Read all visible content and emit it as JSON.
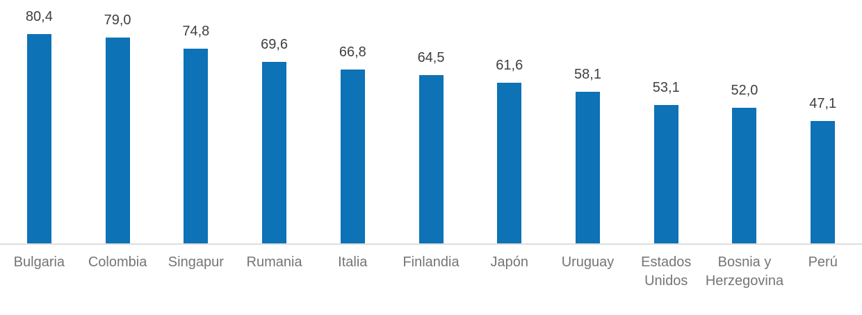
{
  "chart_data": {
    "type": "bar",
    "title": "",
    "xlabel": "",
    "ylabel": "",
    "categories": [
      "Bulgaria",
      "Colombia",
      "Singapur",
      "Rumania",
      "Italia",
      "Finlandia",
      "Japón",
      "Uruguay",
      "Estados Unidos",
      "Bosnia y Herzegovina",
      "Perú"
    ],
    "values": [
      80.4,
      79.0,
      74.8,
      69.6,
      66.8,
      64.5,
      61.6,
      58.1,
      53.1,
      52.0,
      47.1
    ],
    "value_labels": [
      "80,4",
      "79,0",
      "74,8",
      "69,6",
      "66,8",
      "64,5",
      "61,6",
      "58,1",
      "53,1",
      "52,0",
      "47,1"
    ],
    "ylim": [
      0,
      94
    ],
    "grid": false,
    "legend": false,
    "bar_color": "#0d72b6",
    "value_label_color": "#3f3f3f",
    "category_label_color": "#757575",
    "axis_line_color": "#dedede"
  }
}
